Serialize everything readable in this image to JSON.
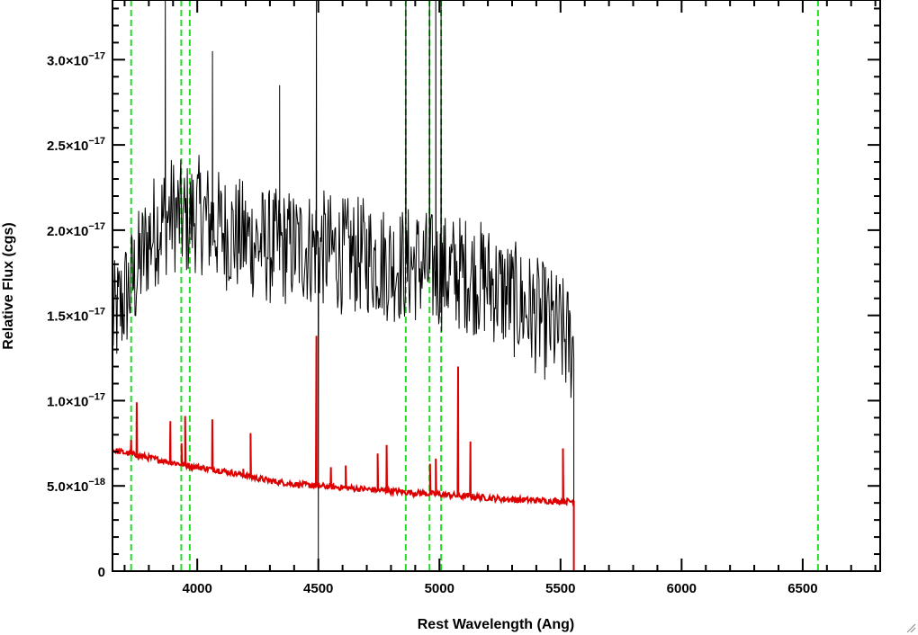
{
  "chart_data": {
    "type": "line",
    "title": "",
    "xlabel": "Rest Wavelength (Ang)",
    "ylabel": "Relative Flux (cgs)",
    "xlim": [
      3650,
      6820
    ],
    "ylim": [
      0,
      3.35e-17
    ],
    "x_ticks": [
      {
        "value": 4000,
        "label": "4000"
      },
      {
        "value": 4500,
        "label": "4500"
      },
      {
        "value": 5000,
        "label": "5000"
      },
      {
        "value": 5500,
        "label": "5500"
      },
      {
        "value": 6000,
        "label": "6000"
      },
      {
        "value": 6500,
        "label": "6500"
      }
    ],
    "y_ticks": [
      {
        "value": 0,
        "mantissa": "0",
        "exponent": ""
      },
      {
        "value": 5e-18,
        "mantissa": "5.0×10",
        "exponent": "−18"
      },
      {
        "value": 1e-17,
        "mantissa": "1.0×10",
        "exponent": "−17"
      },
      {
        "value": 1.5e-17,
        "mantissa": "1.5×10",
        "exponent": "−17"
      },
      {
        "value": 2e-17,
        "mantissa": "2.0×10",
        "exponent": "−17"
      },
      {
        "value": 2.5e-17,
        "mantissa": "2.5×10",
        "exponent": "−17"
      },
      {
        "value": 3e-17,
        "mantissa": "3.0×10",
        "exponent": "−17"
      }
    ],
    "vertical_lines": {
      "color": "#22dd22",
      "style": "dashed",
      "x": [
        3727,
        3934,
        3969,
        4861,
        4959,
        5007,
        6563
      ]
    },
    "series": [
      {
        "color": "#000000",
        "style": "noisy",
        "x": [
          3650,
          3700,
          3750,
          3800,
          3850,
          3900,
          3950,
          4000,
          4050,
          4100,
          4200,
          4300,
          4400,
          4500,
          4600,
          4700,
          4800,
          4900,
          5000,
          5100,
          5200,
          5300,
          5400,
          5500,
          5555,
          5556,
          6820
        ],
        "y": [
          1.45e-17,
          1.6e-17,
          1.75e-17,
          1.95e-17,
          2.05e-17,
          2.1e-17,
          2.05e-17,
          2.1e-17,
          2.05e-17,
          2e-17,
          1.95e-17,
          1.9e-17,
          1.9e-17,
          1.9e-17,
          1.85e-17,
          1.85e-17,
          1.8e-17,
          1.8e-17,
          1.75e-17,
          1.75e-17,
          1.7e-17,
          1.6e-17,
          1.5e-17,
          1.4e-17,
          1.3e-17,
          0,
          0
        ],
        "noise_amplitude": 3.5e-18,
        "spikes": [
          {
            "x": 3868,
            "y": 3.35e-17
          },
          {
            "x": 4063,
            "y": 3.05e-17
          },
          {
            "x": 4340,
            "y": 2.85e-17
          },
          {
            "x": 4492,
            "y": 3.35e-17
          },
          {
            "x": 4500,
            "y": 0
          },
          {
            "x": 4861,
            "y": 3.35e-17
          },
          {
            "x": 4959,
            "y": 3.35e-17
          },
          {
            "x": 4985,
            "y": 3.35e-17
          },
          {
            "x": 5007,
            "y": 3.35e-17
          }
        ]
      },
      {
        "color": "#dd0000",
        "style": "smooth",
        "x": [
          3650,
          3750,
          3850,
          4000,
          4100,
          4200,
          4300,
          4400,
          4500,
          4600,
          4700,
          4800,
          4900,
          5000,
          5100,
          5200,
          5300,
          5400,
          5500,
          5555,
          5556,
          6820
        ],
        "y": [
          7.1e-18,
          6.8e-18,
          6.5e-18,
          6.1e-18,
          5.9e-18,
          5.6e-18,
          5.3e-18,
          5.1e-18,
          5e-18,
          4.9e-18,
          4.8e-18,
          4.7e-18,
          4.6e-18,
          4.5e-18,
          4.4e-18,
          4.3e-18,
          4.2e-18,
          4.15e-18,
          4.1e-18,
          4.1e-18,
          0,
          0
        ],
        "peaks": [
          {
            "x": 3727,
            "y": 7.7e-18
          },
          {
            "x": 3750,
            "y": 9.9e-18
          },
          {
            "x": 3889,
            "y": 8.8e-18
          },
          {
            "x": 3935,
            "y": 7.5e-18
          },
          {
            "x": 3950,
            "y": 9.1e-18
          },
          {
            "x": 4062,
            "y": 8.9e-18
          },
          {
            "x": 4190,
            "y": 6e-18
          },
          {
            "x": 4220,
            "y": 8.1e-18
          },
          {
            "x": 4492,
            "y": 1.38e-17
          },
          {
            "x": 4552,
            "y": 6.1e-18
          },
          {
            "x": 4613,
            "y": 6.2e-18
          },
          {
            "x": 4745,
            "y": 6.9e-18
          },
          {
            "x": 4782,
            "y": 7.4e-18
          },
          {
            "x": 4961,
            "y": 6.3e-18
          },
          {
            "x": 4985,
            "y": 6.6e-18
          },
          {
            "x": 5077,
            "y": 1.2e-17
          },
          {
            "x": 5128,
            "y": 7.6e-18
          },
          {
            "x": 5510,
            "y": 7.2e-18
          }
        ]
      }
    ],
    "grid": false,
    "legend": "none"
  }
}
